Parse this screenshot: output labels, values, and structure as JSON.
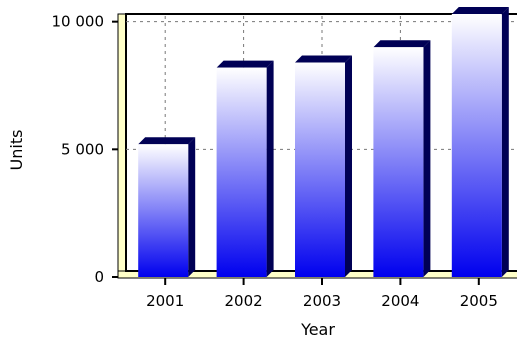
{
  "chart_data": {
    "type": "bar",
    "title": "",
    "xlabel": "Year",
    "ylabel": "Units",
    "categories": [
      "2001",
      "2002",
      "2003",
      "2004",
      "2005"
    ],
    "values": [
      5200,
      8200,
      8400,
      9000,
      10300
    ],
    "ylim": [
      0,
      10300
    ],
    "yticks": [
      0,
      5000,
      10000
    ],
    "ytick_labels": [
      "0",
      "5 000",
      "10 000"
    ],
    "grid": true,
    "legend": "none",
    "colors": {
      "bar_top": "#ffffff",
      "bar_bottom": "#0000ee",
      "bar_side": "#000055",
      "plot_border": "#000000",
      "axis_band": "#ffffc8",
      "grid": "#777777"
    }
  }
}
